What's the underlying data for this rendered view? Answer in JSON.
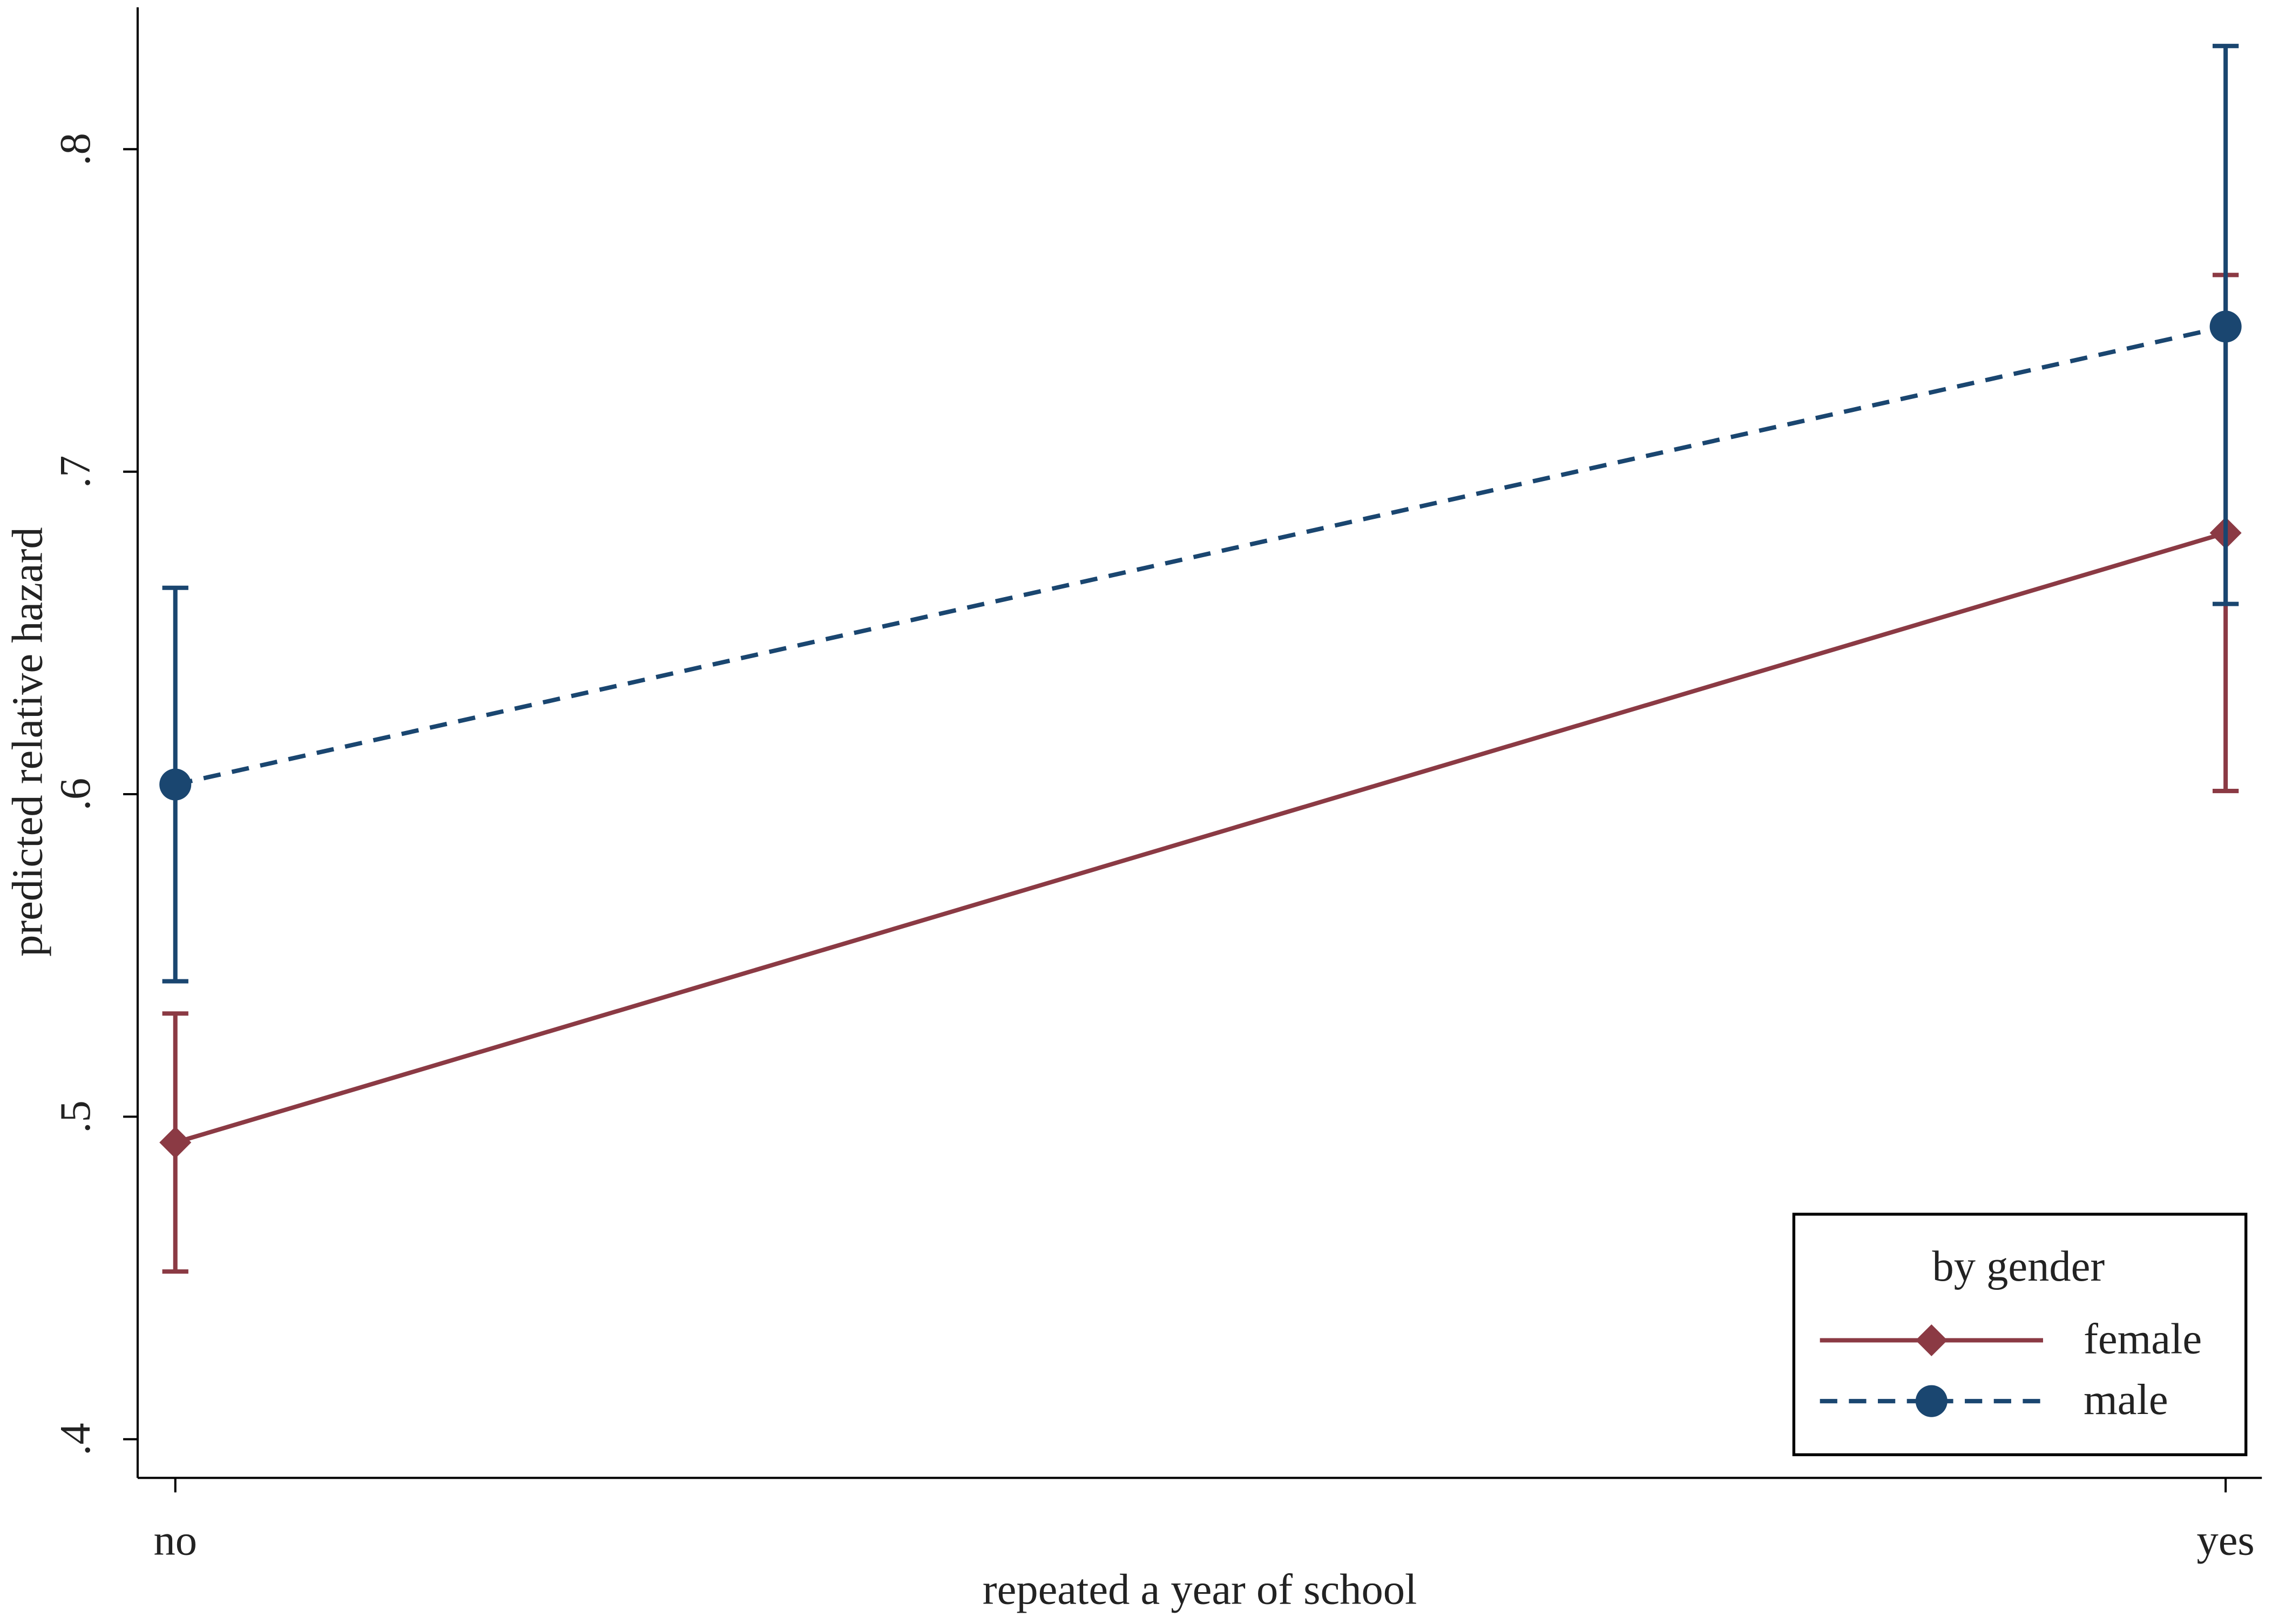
{
  "chart_data": {
    "type": "line",
    "x_label": "repeated a year of school",
    "y_label": "predicted relative hazard",
    "categories": [
      "no",
      "yes"
    ],
    "series": [
      {
        "name": "female",
        "color": "#8b3a44",
        "marker": "diamond",
        "linestyle": "solid",
        "values": [
          0.492,
          0.681
        ],
        "lower": [
          0.452,
          0.601
        ],
        "upper": [
          0.532,
          0.761
        ]
      },
      {
        "name": "male",
        "color": "#1a4670",
        "marker": "circle",
        "linestyle": "dashed",
        "values": [
          0.603,
          0.745
        ],
        "lower": [
          0.542,
          0.659
        ],
        "upper": [
          0.664,
          0.832
        ]
      }
    ],
    "ylim": [
      0.388,
      0.844
    ],
    "yticks": [
      {
        "value": 0.4,
        "label": ".4"
      },
      {
        "value": 0.5,
        "label": ".5"
      },
      {
        "value": 0.6,
        "label": ".6"
      },
      {
        "value": 0.7,
        "label": ".7"
      },
      {
        "value": 0.8,
        "label": ".8"
      }
    ],
    "grid": false,
    "legend": {
      "title": "by gender",
      "position": "lower right"
    }
  }
}
